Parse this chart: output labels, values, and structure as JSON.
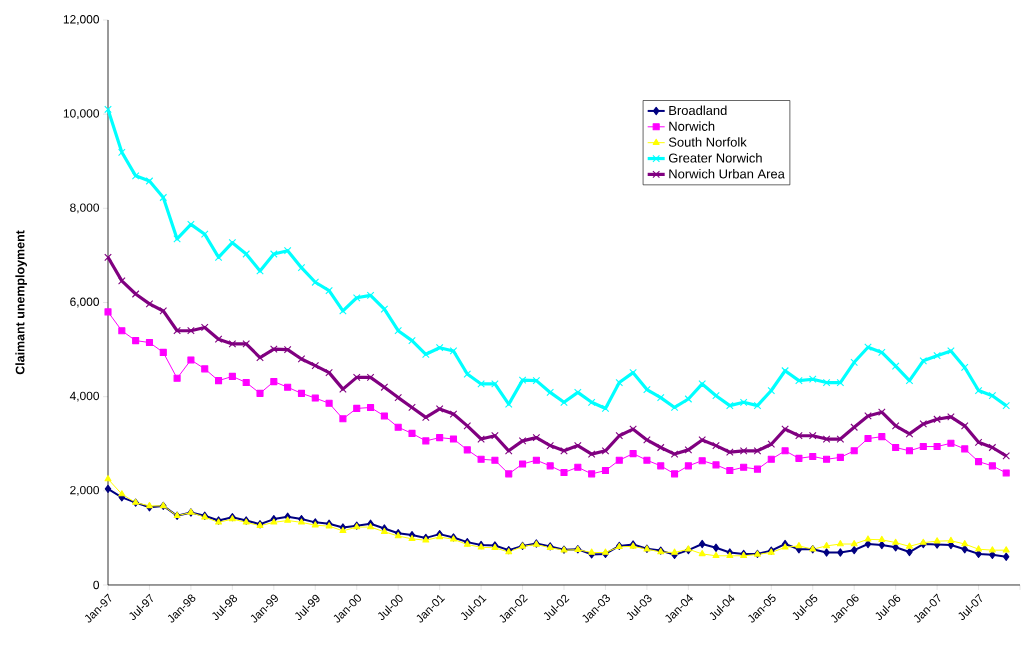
{
  "chart_data": {
    "type": "line",
    "ylabel": "Claimant unemployment",
    "legend": "top right",
    "x": [
      "1997-01",
      "1997-03",
      "1997-05",
      "1997-07",
      "1997-09",
      "1997-11",
      "1998-01",
      "1998-03",
      "1998-05",
      "1998-07",
      "1998-09",
      "1998-11",
      "1999-01",
      "1999-03",
      "1999-05",
      "1999-07",
      "1999-09",
      "1999-11",
      "2000-01",
      "2000-03",
      "2000-05",
      "2000-07",
      "2000-09",
      "2000-11",
      "2001-01",
      "2001-03",
      "2001-05",
      "2001-07",
      "2001-09",
      "2001-11",
      "2002-01",
      "2002-03",
      "2002-05",
      "2002-07",
      "2002-09",
      "2002-11",
      "2003-01",
      "2003-03",
      "2003-05",
      "2003-07",
      "2003-09",
      "2003-11",
      "2004-01",
      "2004-03",
      "2004-05",
      "2004-07",
      "2004-09",
      "2004-11",
      "2005-01",
      "2005-03",
      "2005-05",
      "2005-07",
      "2005-09",
      "2005-11",
      "2006-01",
      "2006-03",
      "2006-05",
      "2006-07",
      "2006-09",
      "2006-11",
      "2007-01",
      "2007-03",
      "2007-05",
      "2007-07",
      "2007-09",
      "2007-11"
    ],
    "xlim": [
      "1997-01",
      "2008-01"
    ],
    "xticks": [
      {
        "value": "1997-01",
        "label": "Jan-97"
      },
      {
        "value": "1997-07",
        "label": "Jul-97"
      },
      {
        "value": "1998-01",
        "label": "Jan-98"
      },
      {
        "value": "1998-07",
        "label": "Jul-98"
      },
      {
        "value": "1999-01",
        "label": "Jan-99"
      },
      {
        "value": "1999-07",
        "label": "Jul-99"
      },
      {
        "value": "2000-01",
        "label": "Jan-00"
      },
      {
        "value": "2000-07",
        "label": "Jul-00"
      },
      {
        "value": "2001-01",
        "label": "Jan-01"
      },
      {
        "value": "2001-07",
        "label": "Jul-01"
      },
      {
        "value": "2002-01",
        "label": "Jan-02"
      },
      {
        "value": "2002-07",
        "label": "Jul-02"
      },
      {
        "value": "2003-01",
        "label": "Jan-03"
      },
      {
        "value": "2003-07",
        "label": "Jul-03"
      },
      {
        "value": "2004-01",
        "label": "Jan-04"
      },
      {
        "value": "2004-07",
        "label": "Jul-04"
      },
      {
        "value": "2005-01",
        "label": "Jan-05"
      },
      {
        "value": "2005-07",
        "label": "Jul-05"
      },
      {
        "value": "2006-01",
        "label": "Jan-06"
      },
      {
        "value": "2006-07",
        "label": "Jul-06"
      },
      {
        "value": "2007-01",
        "label": "Jan-07"
      },
      {
        "value": "2007-07",
        "label": "Jul-07"
      },
      {
        "value": "2008-01",
        "label": null
      }
    ],
    "ylim": [
      0,
      12000
    ],
    "yticks": [
      0,
      {
        "value": 2000,
        "label": "2,000"
      },
      {
        "value": 4000,
        "label": "4,000"
      },
      {
        "value": 6000,
        "label": "6,000"
      },
      {
        "value": 8000,
        "label": "8,000"
      },
      {
        "value": 10000,
        "label": "10,000"
      },
      {
        "value": 12000,
        "label": "12,000"
      }
    ],
    "series": [
      {
        "name": "Broadland",
        "color": "#000080",
        "marker": "diamond",
        "values": [
          2040,
          1860,
          1750,
          1650,
          1680,
          1470,
          1540,
          1470,
          1370,
          1440,
          1370,
          1290,
          1400,
          1450,
          1400,
          1330,
          1300,
          1220,
          1260,
          1300,
          1200,
          1100,
          1060,
          1000,
          1080,
          1010,
          910,
          850,
          840,
          740,
          830,
          880,
          820,
          750,
          760,
          650,
          660,
          830,
          860,
          770,
          730,
          640,
          740,
          870,
          790,
          690,
          660,
          660,
          730,
          870,
          760,
          760,
          690,
          690,
          740,
          870,
          850,
          800,
          700,
          870,
          860,
          850,
          760,
          660,
          640,
          600
        ]
      },
      {
        "name": "Norwich",
        "color": "#ff00ff",
        "marker": "square",
        "values": [
          5800,
          5400,
          5190,
          5150,
          4940,
          4390,
          4780,
          4590,
          4340,
          4430,
          4300,
          4070,
          4320,
          4200,
          4070,
          3970,
          3860,
          3530,
          3750,
          3770,
          3590,
          3350,
          3220,
          3060,
          3130,
          3100,
          2870,
          2670,
          2650,
          2360,
          2570,
          2650,
          2530,
          2390,
          2500,
          2360,
          2430,
          2650,
          2790,
          2650,
          2530,
          2360,
          2530,
          2640,
          2550,
          2430,
          2500,
          2460,
          2670,
          2850,
          2690,
          2730,
          2670,
          2710,
          2850,
          3110,
          3150,
          2920,
          2850,
          2940,
          2940,
          3010,
          2890,
          2620,
          2530,
          2380
        ]
      },
      {
        "name": "South Norfolk",
        "color": "#ffff00",
        "marker": "triangle",
        "values": [
          2250,
          1930,
          1750,
          1680,
          1680,
          1470,
          1540,
          1440,
          1330,
          1400,
          1330,
          1260,
          1330,
          1370,
          1330,
          1270,
          1250,
          1150,
          1230,
          1230,
          1130,
          1040,
          980,
          950,
          1020,
          970,
          860,
          800,
          790,
          700,
          820,
          860,
          790,
          740,
          750,
          690,
          690,
          810,
          820,
          760,
          700,
          690,
          760,
          660,
          620,
          620,
          620,
          650,
          690,
          800,
          830,
          760,
          830,
          870,
          870,
          970,
          960,
          900,
          820,
          900,
          930,
          940,
          870,
          760,
          740,
          740
        ]
      },
      {
        "name": "Greater Norwich",
        "color": "#00ffff",
        "marker": "cross",
        "values": [
          10100,
          9190,
          8690,
          8580,
          8230,
          7350,
          7660,
          7450,
          6960,
          7270,
          7030,
          6670,
          7030,
          7100,
          6740,
          6430,
          6250,
          5820,
          6100,
          6150,
          5860,
          5400,
          5190,
          4900,
          5040,
          4970,
          4480,
          4270,
          4270,
          3840,
          4350,
          4340,
          4090,
          3880,
          4090,
          3880,
          3750,
          4300,
          4510,
          4150,
          3980,
          3770,
          3950,
          4270,
          4020,
          3810,
          3880,
          3810,
          4130,
          4550,
          4340,
          4370,
          4300,
          4300,
          4730,
          5050,
          4940,
          4650,
          4340,
          4760,
          4870,
          4970,
          4620,
          4130,
          4020,
          3810
        ]
      },
      {
        "name": "Norwich Urban Area",
        "color": "#800080",
        "marker": "cross",
        "values": [
          6960,
          6460,
          6180,
          5970,
          5820,
          5400,
          5400,
          5470,
          5220,
          5120,
          5120,
          4830,
          5010,
          5000,
          4800,
          4660,
          4510,
          4160,
          4410,
          4410,
          4200,
          3980,
          3770,
          3560,
          3740,
          3630,
          3380,
          3100,
          3170,
          2850,
          3060,
          3130,
          2960,
          2850,
          2960,
          2780,
          2850,
          3170,
          3310,
          3080,
          2920,
          2780,
          2870,
          3080,
          2960,
          2820,
          2850,
          2850,
          2990,
          3310,
          3170,
          3170,
          3100,
          3100,
          3350,
          3590,
          3670,
          3380,
          3210,
          3420,
          3520,
          3570,
          3380,
          3030,
          2920,
          2740
        ]
      }
    ]
  }
}
